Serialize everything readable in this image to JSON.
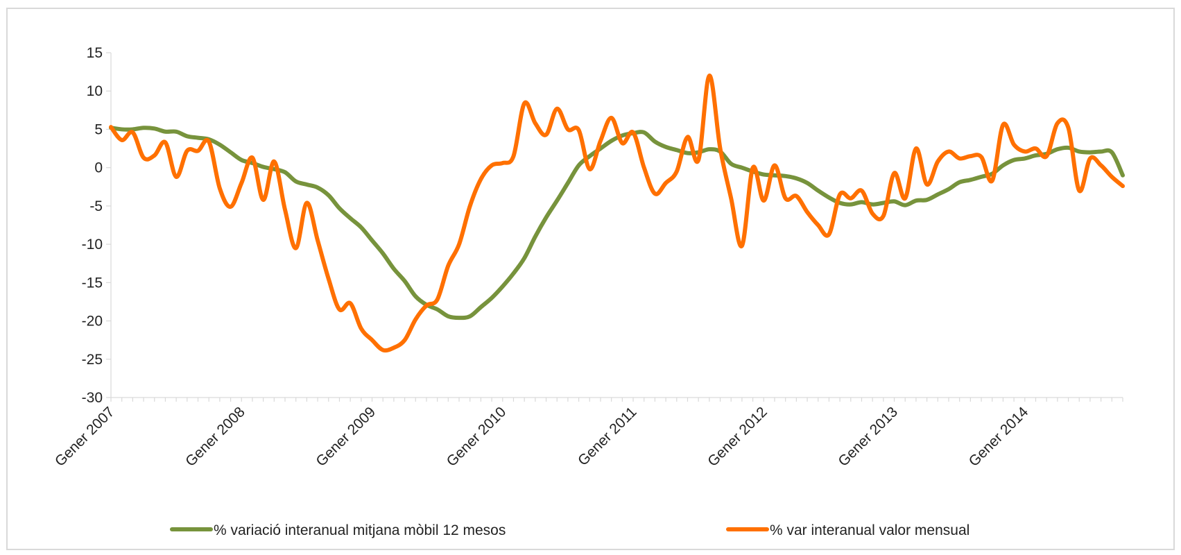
{
  "chart_data": {
    "type": "line",
    "categories": [
      "Gener 2007",
      null,
      null,
      null,
      null,
      null,
      null,
      null,
      null,
      null,
      null,
      null,
      "Gener 2008",
      null,
      null,
      null,
      null,
      null,
      null,
      null,
      null,
      null,
      null,
      null,
      "Gener 2009",
      null,
      null,
      null,
      null,
      null,
      null,
      null,
      null,
      null,
      null,
      null,
      "Gener 2010",
      null,
      null,
      null,
      null,
      null,
      null,
      null,
      null,
      null,
      null,
      null,
      "Gener 2011",
      null,
      null,
      null,
      null,
      null,
      null,
      null,
      null,
      null,
      null,
      null,
      "Gener 2012",
      null,
      null,
      null,
      null,
      null,
      null,
      null,
      null,
      null,
      null,
      null,
      "Gener 2013",
      null,
      null,
      null,
      null,
      null,
      null,
      null,
      null,
      null,
      null,
      null,
      "Gener 2014",
      null,
      null,
      null,
      null,
      null,
      null,
      null,
      null,
      null
    ],
    "series": [
      {
        "name": "% variació interanual mitjana mòbil 12 mesos",
        "color": "#77933c",
        "values": [
          5.2,
          5,
          5,
          5.2,
          5.1,
          4.7,
          4.7,
          4.1,
          3.9,
          3.7,
          3.0,
          2.0,
          1.0,
          0.6,
          0.1,
          -0.2,
          -0.6,
          -1.8,
          -2.2,
          -2.6,
          -3.6,
          -5.3,
          -6.6,
          -7.8,
          -9.5,
          -11.2,
          -13.2,
          -14.8,
          -16.8,
          -17.9,
          -18.5,
          -19.4,
          -19.6,
          -19.4,
          -18.2,
          -17.0,
          -15.5,
          -13.8,
          -11.8,
          -9,
          -6.5,
          -4.3,
          -2,
          0.3,
          1.5,
          2.5,
          3.5,
          4.2,
          4.5,
          4.6,
          3.4,
          2.7,
          2.3,
          1.9,
          2.0,
          2.4,
          2.1,
          0.5,
          0,
          -0.5,
          -0.9,
          -1,
          -1.1,
          -1.4,
          -2.0,
          -3.0,
          -3.9,
          -4.6,
          -4.8,
          -4.5,
          -4.8,
          -4.6,
          -4.4,
          -4.9,
          -4.3,
          -4.2,
          -3.5,
          -2.8,
          -1.9,
          -1.6,
          -1.2,
          -0.8,
          0.3,
          1.0,
          1.2,
          1.6,
          1.8,
          2.4,
          2.6,
          2.1,
          2.0,
          2.1,
          2.0,
          -1.0
        ]
      },
      {
        "name": "% var interanual valor mensual",
        "color": "#ff7000",
        "values": [
          5.3,
          3.6,
          4.6,
          1.3,
          1.6,
          3.3,
          -1.2,
          2.2,
          2.2,
          3.4,
          -2.7,
          -5.1,
          -2.0,
          1.3,
          -4.2,
          0.8,
          -5.5,
          -10.5,
          -4.6,
          -9.5,
          -14.5,
          -18.5,
          -17.7,
          -21,
          -22.5,
          -23.8,
          -23.5,
          -22.5,
          -19.8,
          -18,
          -17.2,
          -12.8,
          -10,
          -5,
          -1.5,
          0.3,
          0.6,
          1.5,
          8.4,
          5.8,
          4.3,
          7.7,
          5.0,
          4.9,
          -0.2,
          3.5,
          6.5,
          3.2,
          4.6,
          0,
          -3.4,
          -2.0,
          -0.5,
          4.0,
          1.0,
          12,
          2.5,
          -4,
          -10.2,
          0,
          -4.3,
          0.3,
          -4,
          -3.7,
          -5.8,
          -7.5,
          -8.7,
          -3.5,
          -4.0,
          -3,
          -6,
          -6.3,
          -0.7,
          -4,
          2.5,
          -2.2,
          0.8,
          2.1,
          1.2,
          1.5,
          1.4,
          -1.7,
          5.6,
          3.0,
          2.1,
          2.5,
          1.5,
          5.8,
          5.2,
          -3,
          1.2,
          0.3,
          -1.2,
          -2.4
        ]
      }
    ],
    "ylim": [
      -30,
      15
    ],
    "yticks": [
      -30,
      -25,
      -20,
      -15,
      -10,
      -5,
      0,
      5,
      10,
      15
    ],
    "grid": false,
    "legend": "bottom"
  }
}
